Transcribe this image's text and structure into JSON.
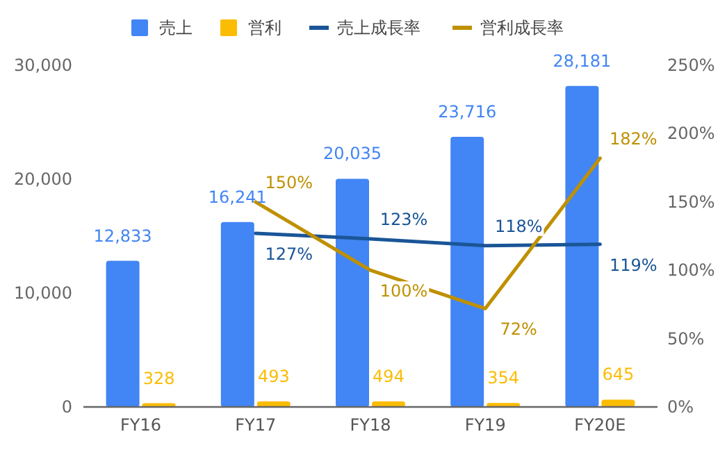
{
  "chart_data": {
    "type": "bar",
    "categories": [
      "FY16",
      "FY17",
      "FY18",
      "FY19",
      "FY20E"
    ],
    "series": [
      {
        "name": "売上",
        "color": "#4285f4",
        "values": [
          12833,
          16241,
          20035,
          23716,
          28181
        ],
        "value_labels": [
          "12,833",
          "16,241",
          "20,035",
          "23,716",
          "28,181"
        ]
      },
      {
        "name": "営利",
        "color": "#fbbc04",
        "values": [
          328,
          493,
          494,
          354,
          645
        ],
        "value_labels": [
          "328",
          "493",
          "494",
          "354",
          "645"
        ]
      },
      {
        "name": "売上成長率",
        "type": "line",
        "axis": "y2",
        "color": "#1a5597",
        "values": [
          null,
          127,
          123,
          118,
          119
        ],
        "value_labels": [
          null,
          "127%",
          "123%",
          "118%",
          "119%"
        ]
      },
      {
        "name": "営利成長率",
        "type": "line",
        "axis": "y2",
        "color": "#bf9000",
        "values": [
          null,
          150,
          100,
          72,
          182
        ],
        "value_labels": [
          null,
          "150%",
          "100%",
          "72%",
          "182%"
        ]
      }
    ],
    "ylim": [
      0,
      30000
    ],
    "yticks": [
      {
        "value": 0,
        "label": "0"
      },
      {
        "value": 10000,
        "label": "10,000"
      },
      {
        "value": 20000,
        "label": "20,000"
      },
      {
        "value": 30000,
        "label": "30,000"
      }
    ],
    "y2lim": [
      0,
      250
    ],
    "y2ticks": [
      {
        "value": 0,
        "label": "0%"
      },
      {
        "value": 50,
        "label": "50%"
      },
      {
        "value": 100,
        "label": "100%"
      },
      {
        "value": 150,
        "label": "150%"
      },
      {
        "value": 200,
        "label": "200%"
      },
      {
        "value": 250,
        "label": "250%"
      }
    ],
    "legend": "top",
    "marker": "none",
    "line_style": "solid"
  }
}
